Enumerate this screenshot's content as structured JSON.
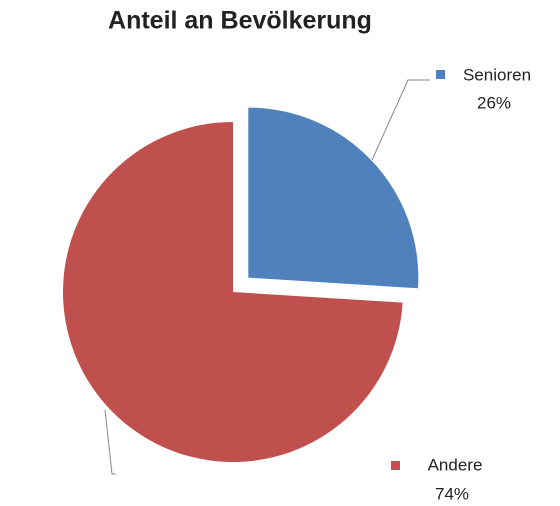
{
  "chart_data": {
    "type": "pie",
    "title": "Anteil an Bevölkerung",
    "categories": [
      "Senioren",
      "Andere"
    ],
    "values": [
      26,
      74
    ],
    "value_labels": [
      "26%",
      "74%"
    ],
    "colors": [
      "#4f81bd",
      "#c0504d"
    ]
  }
}
